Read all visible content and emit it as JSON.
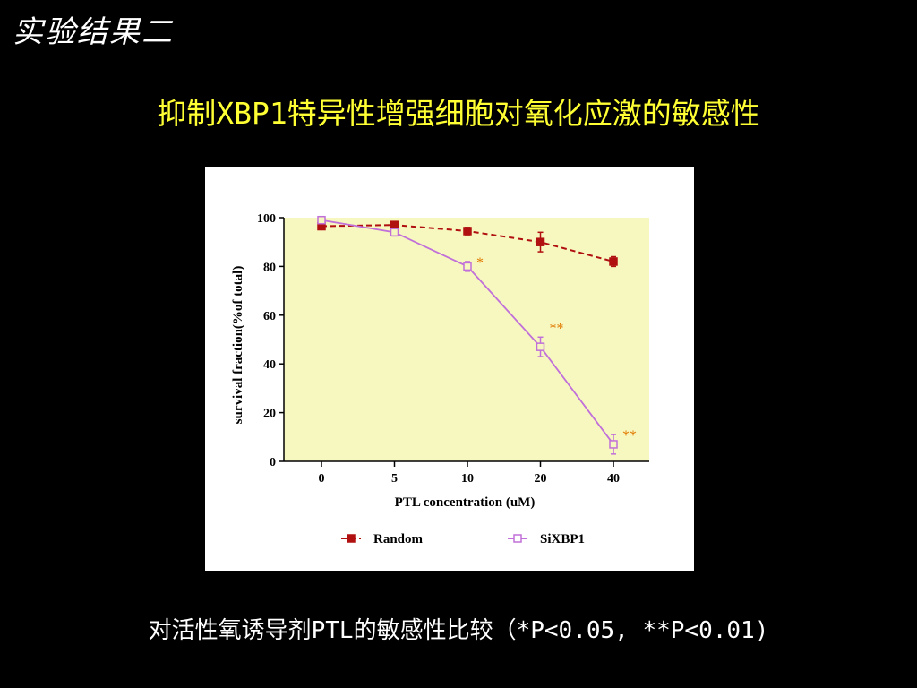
{
  "slide": {
    "title": "实验结果二",
    "subtitle": "抑制XBP1特异性增强细胞对氧化应激的敏感性",
    "caption": "对活性氧诱导剂PTL的敏感性比较（*P<0.05, **P<0.01)"
  },
  "colors": {
    "background": "#000000",
    "title": "#ffffff",
    "subtitle": "#ffff33",
    "plot_background": "#f7f7c0",
    "random_series": "#b01010",
    "sixbp1_series": "#c070d8",
    "significance": "#e07b00"
  },
  "chart_data": {
    "type": "line",
    "title": "",
    "xlabel": "PTL concentration (uM)",
    "ylabel": "survival fraction(%of total)",
    "x_scale": "categorical",
    "categories": [
      "0",
      "5",
      "10",
      "20",
      "40"
    ],
    "yticks": [
      "0",
      "20",
      "40",
      "60",
      "80",
      "100"
    ],
    "ylim": [
      0,
      100
    ],
    "grid": false,
    "legend_position": "bottom",
    "series": [
      {
        "name": "Random",
        "marker": "filled-square",
        "line_style": "dashed",
        "color": "#b01010",
        "values": [
          96.5,
          97,
          94.5,
          90,
          82
        ],
        "errors": [
          1,
          0.5,
          1.5,
          4,
          2
        ]
      },
      {
        "name": "SiXBP1",
        "marker": "open-square",
        "line_style": "solid",
        "color": "#c070d8",
        "values": [
          99,
          94,
          80,
          47,
          7
        ],
        "errors": [
          0.5,
          1.5,
          2,
          4,
          4
        ]
      }
    ],
    "annotations": [
      {
        "category": "10",
        "value": 82,
        "text": "*"
      },
      {
        "category": "20",
        "value": 55,
        "text": "**"
      },
      {
        "category": "40",
        "value": 11,
        "text": "**"
      }
    ]
  }
}
